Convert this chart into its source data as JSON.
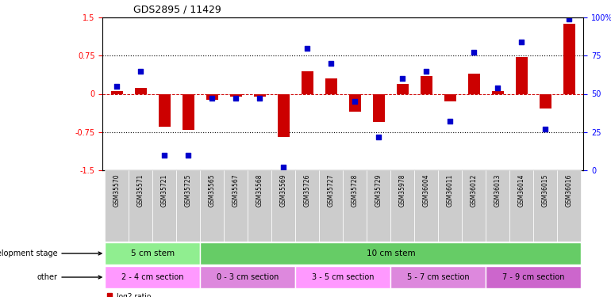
{
  "title": "GDS2895 / 11429",
  "samples": [
    "GSM35570",
    "GSM35571",
    "GSM35721",
    "GSM35725",
    "GSM35565",
    "GSM35567",
    "GSM35568",
    "GSM35569",
    "GSM35726",
    "GSM35727",
    "GSM35728",
    "GSM35729",
    "GSM35978",
    "GSM36004",
    "GSM36011",
    "GSM36012",
    "GSM36013",
    "GSM36014",
    "GSM36015",
    "GSM36016"
  ],
  "log2_ratio": [
    0.05,
    0.12,
    -0.65,
    -0.7,
    -0.12,
    -0.05,
    -0.05,
    -0.85,
    0.45,
    0.3,
    -0.35,
    -0.55,
    0.2,
    0.35,
    -0.15,
    0.4,
    0.05,
    0.72,
    -0.28,
    1.38
  ],
  "percentile": [
    55,
    65,
    10,
    10,
    47,
    47,
    47,
    2,
    80,
    70,
    45,
    22,
    60,
    65,
    32,
    77,
    54,
    84,
    27,
    99
  ],
  "dev_stage_groups": [
    {
      "label": "5 cm stem",
      "start": 0,
      "end": 3,
      "color": "#90EE90"
    },
    {
      "label": "10 cm stem",
      "start": 4,
      "end": 19,
      "color": "#66CC66"
    }
  ],
  "other_groups": [
    {
      "label": "2 - 4 cm section",
      "start": 0,
      "end": 3,
      "color": "#FF99FF"
    },
    {
      "label": "0 - 3 cm section",
      "start": 4,
      "end": 7,
      "color": "#DD88DD"
    },
    {
      "label": "3 - 5 cm section",
      "start": 8,
      "end": 11,
      "color": "#FF99FF"
    },
    {
      "label": "5 - 7 cm section",
      "start": 12,
      "end": 15,
      "color": "#DD88DD"
    },
    {
      "label": "7 - 9 cm section",
      "start": 16,
      "end": 19,
      "color": "#CC66CC"
    }
  ],
  "bar_color": "#CC0000",
  "dot_color": "#0000CC",
  "ylim_left": [
    -1.5,
    1.5
  ],
  "ylim_right": [
    0,
    100
  ],
  "yticks_left": [
    -1.5,
    -0.75,
    0,
    0.75,
    1.5
  ],
  "yticks_right": [
    0,
    25,
    50,
    75,
    100
  ],
  "hline_dotted": [
    -0.75,
    0.75
  ],
  "hline_zero": 0.0
}
